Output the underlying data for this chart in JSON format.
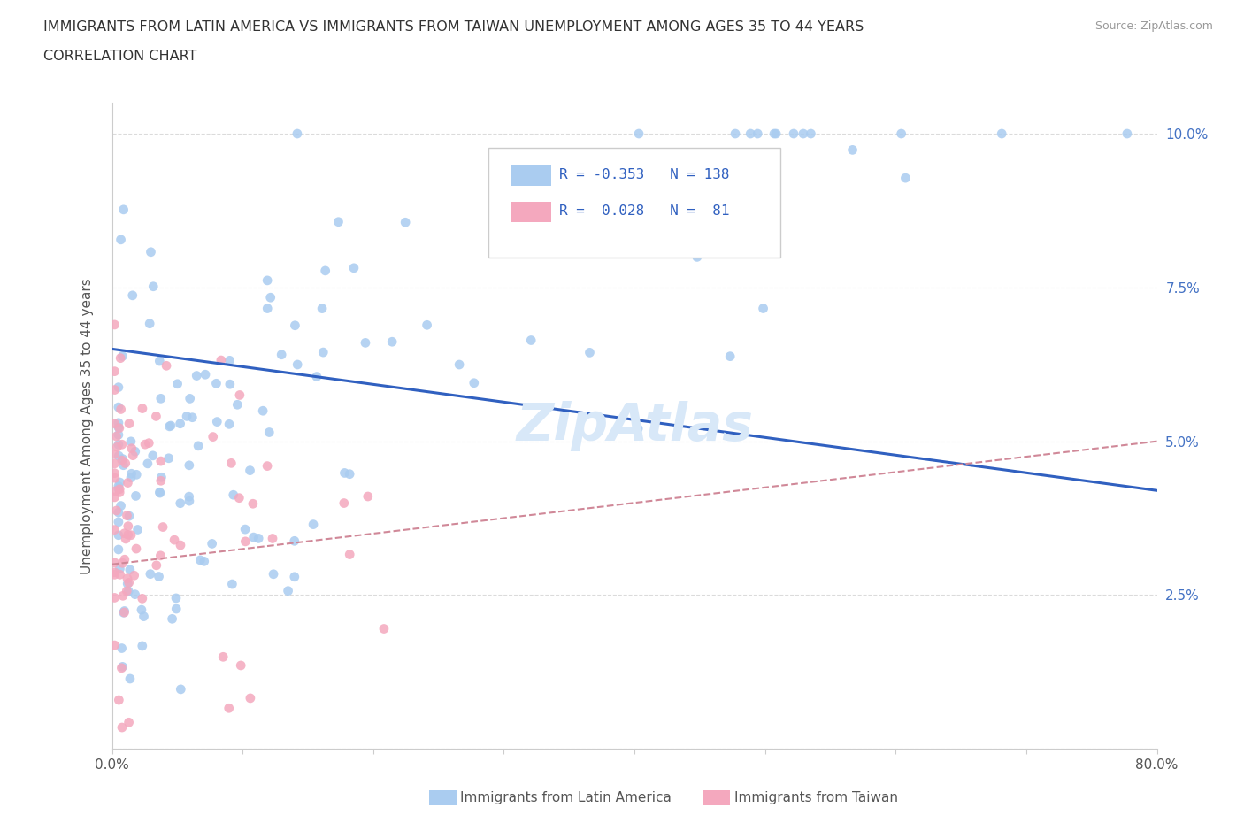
{
  "title_line1": "IMMIGRANTS FROM LATIN AMERICA VS IMMIGRANTS FROM TAIWAN UNEMPLOYMENT AMONG AGES 35 TO 44 YEARS",
  "title_line2": "CORRELATION CHART",
  "source_text": "Source: ZipAtlas.com",
  "ylabel": "Unemployment Among Ages 35 to 44 years",
  "xlim": [
    0.0,
    0.8
  ],
  "ylim": [
    0.0,
    0.105
  ],
  "xtick_positions": [
    0.0,
    0.1,
    0.2,
    0.3,
    0.4,
    0.5,
    0.6,
    0.7,
    0.8
  ],
  "xticklabels": [
    "0.0%",
    "",
    "",
    "",
    "",
    "",
    "",
    "",
    "80.0%"
  ],
  "ytick_positions": [
    0.0,
    0.025,
    0.05,
    0.075,
    0.1
  ],
  "yticklabels": [
    "",
    "2.5%",
    "5.0%",
    "7.5%",
    "10.0%"
  ],
  "color_latin": "#aaccf0",
  "color_taiwan": "#f4a8be",
  "line_color_latin": "#3060c0",
  "line_color_taiwan": "#d08898",
  "watermark": "ZipAtlas",
  "watermark_color": "#d8e8f8"
}
